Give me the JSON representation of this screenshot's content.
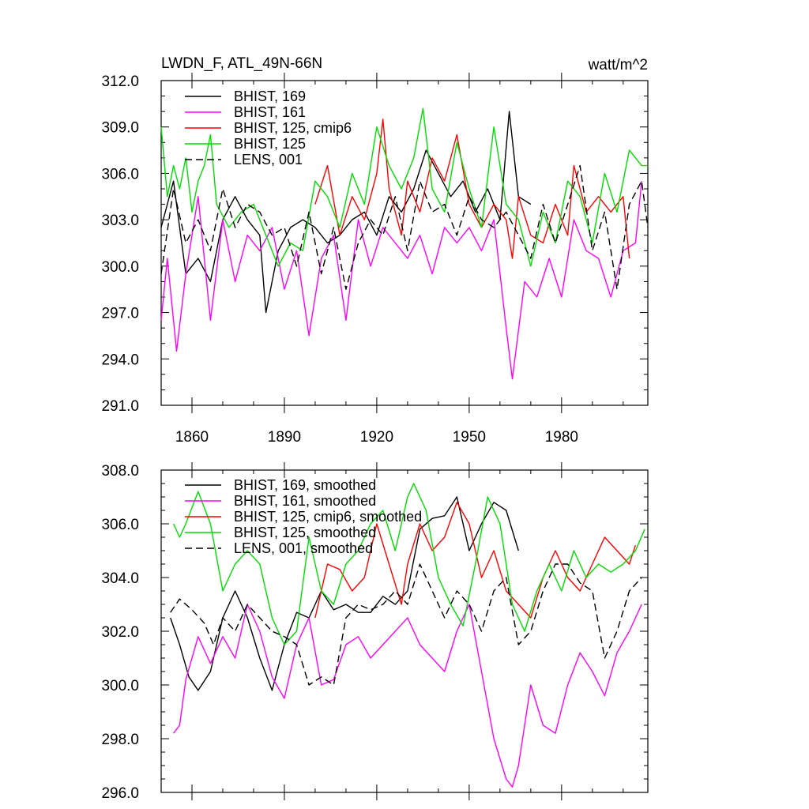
{
  "chart_data": [
    {
      "type": "line",
      "title": "LWDN_F, ATL_49N-66N",
      "units": "watt/m^2",
      "xlim": [
        1850,
        2008
      ],
      "ylim": [
        291.0,
        312.0
      ],
      "x_ticks": [
        1860,
        1890,
        1920,
        1950,
        1980
      ],
      "y_ticks": [
        "291.0",
        "294.0",
        "297.0",
        "300.0",
        "303.0",
        "306.0",
        "309.0",
        "312.0"
      ],
      "legend_position": "top-left",
      "series": [
        {
          "name": "BHIST, 169",
          "color": "#000000",
          "dash": "solid",
          "x": [
            1850,
            1854,
            1858,
            1862,
            1866,
            1870,
            1874,
            1878,
            1882,
            1884,
            1888,
            1892,
            1896,
            1900,
            1904,
            1908,
            1912,
            1916,
            1920,
            1924,
            1928,
            1932,
            1936,
            1940,
            1944,
            1948,
            1952,
            1956,
            1960,
            1963,
            1966,
            1970
          ],
          "values": [
            302.5,
            305.5,
            299.5,
            300.5,
            299.0,
            303.0,
            304.5,
            303.0,
            302.0,
            297.0,
            301.0,
            302.5,
            303.0,
            302.5,
            301.5,
            302.0,
            303.0,
            303.5,
            302.0,
            304.5,
            303.5,
            305.0,
            307.5,
            306.0,
            304.5,
            305.5,
            303.5,
            305.0,
            303.0,
            310.0,
            304.5,
            304.0
          ]
        },
        {
          "name": "BHIST, 161",
          "color": "#ff00ff",
          "dash": "solid",
          "x": [
            1850,
            1852,
            1855,
            1858,
            1862,
            1866,
            1870,
            1874,
            1878,
            1882,
            1886,
            1890,
            1894,
            1898,
            1902,
            1906,
            1910,
            1914,
            1918,
            1922,
            1926,
            1930,
            1934,
            1938,
            1942,
            1946,
            1950,
            1954,
            1958,
            1962,
            1964,
            1968,
            1972,
            1976,
            1980,
            1984,
            1988,
            1992,
            1996,
            2000,
            2004,
            2006
          ],
          "values": [
            296.5,
            300.5,
            294.5,
            299.5,
            304.5,
            296.5,
            303.0,
            299.0,
            302.0,
            301.0,
            302.5,
            298.5,
            301.0,
            295.5,
            300.5,
            302.0,
            296.5,
            303.0,
            300.0,
            302.5,
            301.5,
            300.5,
            302.0,
            299.5,
            302.5,
            301.5,
            302.5,
            301.0,
            303.0,
            296.0,
            292.7,
            299.0,
            298.0,
            300.5,
            298.0,
            303.0,
            301.0,
            300.5,
            298.0,
            301.0,
            301.5,
            305.5
          ]
        },
        {
          "name": "BHIST, 125, cmip6",
          "color": "#ff0000",
          "dash": "solid",
          "x": [
            1900,
            1904,
            1908,
            1912,
            1916,
            1920,
            1922,
            1924,
            1928,
            1930,
            1934,
            1938,
            1942,
            1946,
            1950,
            1954,
            1958,
            1962,
            1964,
            1966,
            1970,
            1974,
            1978,
            1982,
            1984,
            1988,
            1992,
            1996,
            2000,
            2002
          ],
          "values": [
            304.0,
            306.5,
            302.0,
            304.5,
            303.0,
            306.0,
            309.5,
            305.0,
            302.0,
            305.5,
            303.5,
            307.0,
            305.5,
            308.5,
            304.0,
            302.5,
            304.0,
            303.0,
            300.5,
            304.5,
            302.0,
            301.5,
            304.0,
            302.0,
            306.5,
            303.5,
            304.5,
            303.5,
            304.5,
            300.5
          ]
        },
        {
          "name": "BHIST, 125",
          "color": "#00dd00",
          "dash": "solid",
          "x": [
            1850,
            1852,
            1854,
            1856,
            1858,
            1860,
            1862,
            1864,
            1866,
            1868,
            1872,
            1876,
            1880,
            1884,
            1888,
            1892,
            1896,
            1900,
            1904,
            1908,
            1912,
            1916,
            1920,
            1924,
            1928,
            1932,
            1935,
            1938,
            1942,
            1946,
            1950,
            1954,
            1958,
            1962,
            1966,
            1970,
            1974,
            1978,
            1982,
            1986,
            1990,
            1994,
            1998,
            2002,
            2006,
            2008
          ],
          "values": [
            309.0,
            304.5,
            306.5,
            305.0,
            307.0,
            303.5,
            305.5,
            306.5,
            308.5,
            304.0,
            302.5,
            303.5,
            304.0,
            302.0,
            300.0,
            301.5,
            301.0,
            305.5,
            304.5,
            302.5,
            306.0,
            304.0,
            309.0,
            306.5,
            305.0,
            307.0,
            310.2,
            305.0,
            303.5,
            308.0,
            305.0,
            302.5,
            309.0,
            304.0,
            303.0,
            300.0,
            303.5,
            301.5,
            305.5,
            304.5,
            301.5,
            306.0,
            303.5,
            307.5,
            306.5,
            306.5
          ]
        },
        {
          "name": "LENS, 001",
          "color": "#000000",
          "dash": "dashed",
          "x": [
            1850,
            1854,
            1858,
            1862,
            1866,
            1870,
            1874,
            1878,
            1882,
            1886,
            1890,
            1894,
            1898,
            1902,
            1906,
            1910,
            1914,
            1918,
            1922,
            1926,
            1930,
            1934,
            1938,
            1942,
            1946,
            1950,
            1954,
            1958,
            1962,
            1966,
            1970,
            1974,
            1978,
            1982,
            1986,
            1990,
            1994,
            1998,
            2002,
            2006,
            2008
          ],
          "values": [
            299.5,
            305.0,
            301.5,
            303.0,
            301.0,
            305.0,
            302.5,
            304.0,
            303.5,
            302.0,
            302.5,
            300.0,
            303.5,
            299.5,
            302.5,
            298.5,
            301.5,
            303.0,
            302.0,
            304.5,
            301.0,
            305.5,
            303.5,
            304.0,
            302.0,
            304.5,
            303.0,
            302.5,
            303.5,
            302.0,
            300.5,
            304.0,
            301.5,
            304.0,
            306.5,
            301.0,
            303.5,
            298.5,
            304.0,
            305.5,
            302.5
          ]
        }
      ]
    },
    {
      "type": "line",
      "xlim": [
        1850,
        2008
      ],
      "ylim": [
        296.0,
        308.0
      ],
      "y_ticks": [
        "296.0",
        "298.0",
        "300.0",
        "302.0",
        "304.0",
        "306.0",
        "308.0"
      ],
      "legend_position": "top-left",
      "series": [
        {
          "name": "BHIST, 169, smoothed",
          "color": "#000000",
          "dash": "solid",
          "x": [
            1853,
            1856,
            1859,
            1862,
            1866,
            1870,
            1874,
            1878,
            1882,
            1886,
            1890,
            1894,
            1898,
            1902,
            1906,
            1910,
            1914,
            1918,
            1922,
            1926,
            1930,
            1934,
            1938,
            1942,
            1946,
            1950,
            1954,
            1958,
            1962,
            1966
          ],
          "values": [
            302.5,
            301.5,
            300.3,
            299.8,
            300.5,
            302.5,
            303.5,
            302.5,
            301.0,
            299.8,
            301.5,
            302.7,
            302.5,
            303.5,
            302.8,
            303.0,
            302.7,
            302.7,
            303.3,
            303.0,
            303.5,
            305.8,
            306.2,
            306.3,
            307.0,
            305.0,
            306.0,
            306.8,
            306.5,
            305.0
          ]
        },
        {
          "name": "BHIST, 161, smoothed",
          "color": "#ff00ff",
          "dash": "solid",
          "x": [
            1854,
            1856,
            1858,
            1862,
            1866,
            1870,
            1874,
            1878,
            1882,
            1886,
            1890,
            1894,
            1898,
            1902,
            1906,
            1910,
            1914,
            1918,
            1922,
            1926,
            1930,
            1934,
            1938,
            1942,
            1946,
            1950,
            1954,
            1958,
            1962,
            1964,
            1966,
            1970,
            1974,
            1978,
            1982,
            1986,
            1990,
            1994,
            1998,
            2002,
            2006
          ],
          "values": [
            298.2,
            298.5,
            300.2,
            301.8,
            300.8,
            301.8,
            301.0,
            303.0,
            302.0,
            300.3,
            299.5,
            301.5,
            302.5,
            300.0,
            300.2,
            301.5,
            301.8,
            301.0,
            301.5,
            302.0,
            302.5,
            301.5,
            301.0,
            300.5,
            302.0,
            303.0,
            300.5,
            298.0,
            296.5,
            296.2,
            297.0,
            300.0,
            298.5,
            298.2,
            300.0,
            301.2,
            300.5,
            299.6,
            301.2,
            302.0,
            303.0
          ]
        },
        {
          "name": "BHIST, 125, cmip6, smoothed",
          "color": "#ff0000",
          "dash": "solid",
          "x": [
            1900,
            1904,
            1908,
            1912,
            1916,
            1920,
            1924,
            1928,
            1930,
            1934,
            1938,
            1942,
            1946,
            1950,
            1954,
            1958,
            1962,
            1966,
            1970,
            1974,
            1978,
            1982,
            1986,
            1990,
            1994,
            1998,
            2002,
            2004
          ],
          "values": [
            302.5,
            304.5,
            304.3,
            303.5,
            304.0,
            306.0,
            304.5,
            303.0,
            304.5,
            306.0,
            305.0,
            305.5,
            306.8,
            306.0,
            304.0,
            305.0,
            303.5,
            303.0,
            302.5,
            304.0,
            305.0,
            304.0,
            303.5,
            304.5,
            305.5,
            305.0,
            304.5,
            305.2
          ]
        },
        {
          "name": "BHIST, 125, smoothed",
          "color": "#00dd00",
          "dash": "solid",
          "x": [
            1854,
            1856,
            1858,
            1862,
            1866,
            1870,
            1874,
            1878,
            1882,
            1886,
            1890,
            1894,
            1898,
            1902,
            1906,
            1910,
            1914,
            1918,
            1922,
            1926,
            1930,
            1932,
            1936,
            1940,
            1944,
            1948,
            1952,
            1956,
            1960,
            1964,
            1968,
            1972,
            1976,
            1980,
            1984,
            1988,
            1992,
            1996,
            2000,
            2004,
            2007
          ],
          "values": [
            306.0,
            305.5,
            306.0,
            307.2,
            306.0,
            303.5,
            304.5,
            305.0,
            304.5,
            302.5,
            301.5,
            302.0,
            305.5,
            303.5,
            303.0,
            304.5,
            305.0,
            306.0,
            306.5,
            305.0,
            307.0,
            307.5,
            306.5,
            304.0,
            303.0,
            302.2,
            304.5,
            307.0,
            306.0,
            303.0,
            302.0,
            303.5,
            304.5,
            303.5,
            305.0,
            304.0,
            304.5,
            304.2,
            304.5,
            305.0,
            305.8
          ]
        },
        {
          "name": "LENS, 001, smoothed",
          "color": "#000000",
          "dash": "dashed",
          "x": [
            1853,
            1856,
            1860,
            1864,
            1867,
            1870,
            1874,
            1878,
            1882,
            1886,
            1890,
            1894,
            1898,
            1902,
            1906,
            1910,
            1914,
            1918,
            1922,
            1926,
            1930,
            1934,
            1938,
            1942,
            1946,
            1950,
            1954,
            1958,
            1962,
            1966,
            1970,
            1974,
            1978,
            1982,
            1986,
            1990,
            1994,
            1998,
            2002,
            2006
          ],
          "values": [
            302.7,
            303.2,
            302.8,
            302.3,
            301.5,
            302.5,
            302.0,
            303.0,
            302.5,
            302.0,
            301.8,
            301.5,
            300.0,
            300.3,
            300.0,
            302.5,
            303.0,
            302.8,
            303.0,
            303.5,
            303.0,
            304.5,
            303.5,
            302.5,
            303.5,
            303.0,
            302.0,
            303.5,
            304.0,
            301.5,
            302.0,
            303.5,
            304.5,
            304.5,
            303.8,
            303.5,
            301.0,
            302.0,
            303.5,
            304.0
          ]
        }
      ]
    }
  ]
}
